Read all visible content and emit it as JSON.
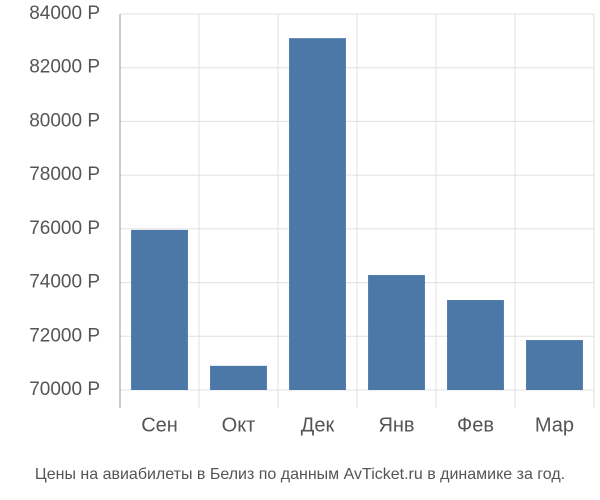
{
  "chart_data": {
    "type": "bar",
    "caption": "Цены на авиабилеты в Белиз по данным AvTicket.ru в динамике за год.",
    "categories": [
      "Сен",
      "Окт",
      "Дек",
      "Янв",
      "Фев",
      "Мар"
    ],
    "values": [
      75960,
      70900,
      83100,
      74280,
      73350,
      71860
    ],
    "color": "#4c78a8",
    "ylim": [
      70000,
      84000
    ],
    "yticks": [
      {
        "value": 70000,
        "label": "70000 Р"
      },
      {
        "value": 72000,
        "label": "72000 Р"
      },
      {
        "value": 74000,
        "label": "74000 Р"
      },
      {
        "value": 76000,
        "label": "76000 Р"
      },
      {
        "value": 78000,
        "label": "78000 Р"
      },
      {
        "value": 80000,
        "label": "80000 Р"
      },
      {
        "value": 82000,
        "label": "82000 Р"
      },
      {
        "value": 84000,
        "label": "84000 Р"
      }
    ],
    "grid": true
  }
}
